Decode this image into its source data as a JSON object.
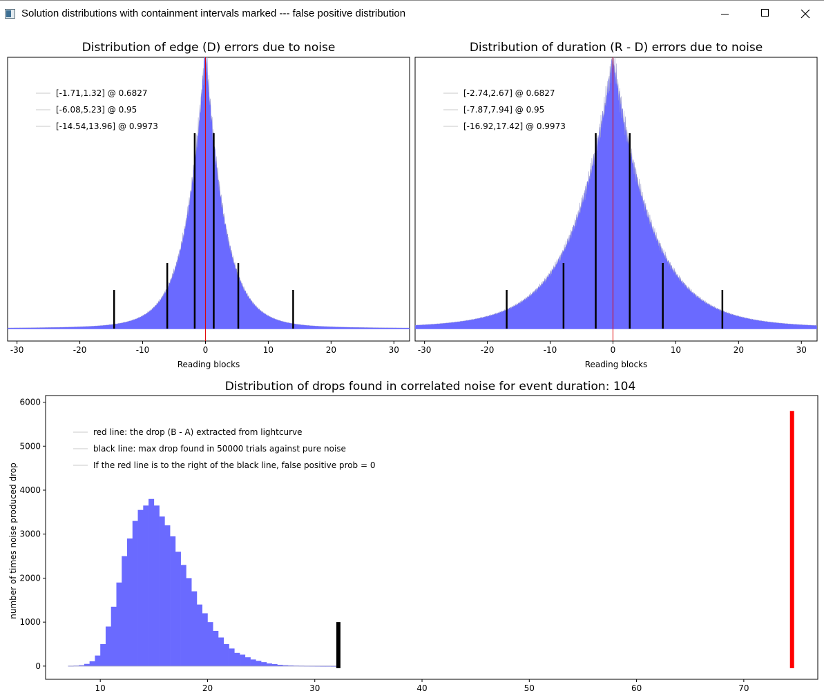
{
  "window": {
    "title": "Solution distributions with containment intervals marked --- false positive distribution"
  },
  "icons": {
    "app": "app-icon",
    "minimize": "minimize-icon",
    "maximize": "maximize-icon",
    "close": "close-icon"
  },
  "colors": {
    "histogram": "#6a6aff",
    "zero_line": "#e00000",
    "interval_lines": "#000000",
    "red_line": "#ff0000",
    "black_line": "#000000"
  },
  "chart_data": [
    {
      "type": "area",
      "title": "Distribution of edge (D) errors due to noise",
      "xlabel": "Reading blocks",
      "ylabel": "",
      "xlim": [
        -31.5,
        32.5
      ],
      "x_ticks": [
        -30,
        -20,
        -10,
        0,
        10,
        20,
        30
      ],
      "x_tick_labels": [
        "-30",
        "-20",
        "-10",
        "0",
        "10",
        "20",
        "30"
      ],
      "grid": false,
      "legend_placement": "top-left",
      "legend": [
        "[-1.71,1.32] @ 0.6827",
        "[-6.08,5.23] @ 0.95",
        "[-14.54,13.96] @ 0.9973"
      ],
      "intervals": [
        {
          "label": "[-1.71,1.32] @ 0.6827",
          "low": -1.71,
          "high": 1.32,
          "confidence": 0.6827
        },
        {
          "label": "[-6.08,5.23] @ 0.95",
          "low": -6.08,
          "high": 5.23,
          "confidence": 0.95
        },
        {
          "label": "[-14.54,13.96] @ 0.9973",
          "low": -14.54,
          "high": 13.96,
          "confidence": 0.9973
        }
      ],
      "zero_marker": 0,
      "distribution_shape": "sharp peak at 0, heavy tails"
    },
    {
      "type": "area",
      "title": "Distribution of duration (R - D) errors due to noise",
      "xlabel": "Reading blocks",
      "ylabel": "",
      "xlim": [
        -31.5,
        32.5
      ],
      "x_ticks": [
        -30,
        -20,
        -10,
        0,
        10,
        20,
        30
      ],
      "x_tick_labels": [
        "-30",
        "-20",
        "-10",
        "0",
        "10",
        "20",
        "30"
      ],
      "grid": false,
      "legend_placement": "top-left",
      "legend": [
        "[-2.74,2.67] @ 0.6827",
        "[-7.87,7.94] @ 0.95",
        "[-16.92,17.42] @ 0.9973"
      ],
      "intervals": [
        {
          "label": "[-2.74,2.67] @ 0.6827",
          "low": -2.74,
          "high": 2.67,
          "confidence": 0.6827
        },
        {
          "label": "[-7.87,7.94] @ 0.95",
          "low": -7.87,
          "high": 7.94,
          "confidence": 0.95
        },
        {
          "label": "[-16.92,17.42] @ 0.9973",
          "low": -16.92,
          "high": 17.42,
          "confidence": 0.9973
        }
      ],
      "zero_marker": 0,
      "distribution_shape": "peak at 0, broader than edge distribution"
    },
    {
      "type": "bar",
      "title": "Distribution of drops found in correlated noise for event duration: 104",
      "xlabel": "",
      "ylabel": "number of times noise produced drop",
      "xlim": [
        4.9,
        76.9
      ],
      "ylim": [
        -300,
        6150
      ],
      "x_ticks": [
        10,
        20,
        30,
        40,
        50,
        60,
        70
      ],
      "x_tick_labels": [
        "10",
        "20",
        "30",
        "40",
        "50",
        "60",
        "70"
      ],
      "y_ticks": [
        0,
        1000,
        2000,
        3000,
        4000,
        5000,
        6000
      ],
      "y_tick_labels": [
        "0",
        "1000",
        "2000",
        "3000",
        "4000",
        "5000",
        "6000"
      ],
      "grid": false,
      "legend_placement": "top-left",
      "legend": [
        "red line: the drop (B - A) extracted from lightcurve",
        "black line: max drop found in 50000 trials against pure noise",
        "If the red line is to the right of the black line, false positive prob = 0"
      ],
      "bin_width": 0.5,
      "x": [
        7.0,
        7.5,
        8.0,
        8.5,
        9.0,
        9.5,
        10.0,
        10.5,
        11.0,
        11.5,
        12.0,
        12.5,
        13.0,
        13.5,
        14.0,
        14.5,
        15.0,
        15.5,
        16.0,
        16.5,
        17.0,
        17.5,
        18.0,
        18.5,
        19.0,
        19.5,
        20.0,
        20.5,
        21.0,
        21.5,
        22.0,
        22.5,
        23.0,
        23.5,
        24.0,
        24.5,
        25.0,
        25.5,
        26.0,
        26.5,
        27.0,
        27.5,
        28.0,
        28.5,
        29.0,
        29.5,
        30.0,
        30.5,
        31.0,
        31.5
      ],
      "values": [
        5,
        10,
        20,
        50,
        110,
        240,
        500,
        900,
        1350,
        1900,
        2500,
        2900,
        3300,
        3550,
        3650,
        3800,
        3650,
        3400,
        3200,
        2950,
        2600,
        2300,
        2000,
        1700,
        1400,
        1200,
        1000,
        800,
        650,
        500,
        400,
        300,
        260,
        200,
        150,
        120,
        90,
        60,
        45,
        30,
        20,
        15,
        10,
        8,
        5,
        3,
        2,
        1,
        1,
        0
      ],
      "black_line": {
        "x": 32.2,
        "value": 1000
      },
      "red_line": {
        "x": 74.5,
        "value": 5800
      }
    }
  ]
}
